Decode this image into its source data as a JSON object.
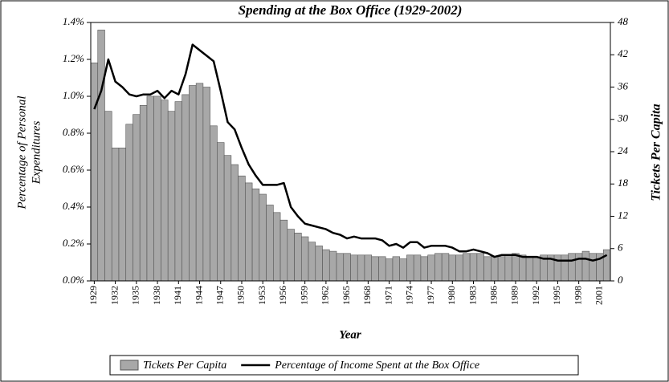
{
  "chart_data": {
    "type": "bar",
    "title": "Spending at the Box Office (1929-2002)",
    "ylabel": [
      "Percentage of Personal",
      "Expenditures"
    ],
    "y2label": "Tickets Per Capita",
    "xlabel": "Year",
    "categories": [
      "1929",
      null,
      null,
      "1932",
      null,
      null,
      "1935",
      null,
      null,
      "1938",
      null,
      null,
      "1941",
      null,
      null,
      "1944",
      null,
      null,
      "1947",
      null,
      null,
      "1950",
      null,
      null,
      "1953",
      null,
      null,
      "1956",
      null,
      null,
      "1959",
      null,
      null,
      "1962",
      null,
      null,
      "1965",
      null,
      null,
      "1968",
      null,
      null,
      "1971",
      null,
      null,
      "1974",
      null,
      null,
      "1977",
      null,
      null,
      "1980",
      null,
      null,
      "1983",
      null,
      null,
      "1986",
      null,
      null,
      "1989",
      null,
      null,
      "1992",
      null,
      null,
      "1995",
      null,
      null,
      "1998",
      null,
      null,
      "2001",
      null
    ],
    "ylim": [
      0,
      1.4
    ],
    "yticks": [
      {
        "value": 0,
        "label": "0.0%"
      },
      {
        "value": 0.2,
        "label": "0.2%"
      },
      {
        "value": 0.4,
        "label": "0.4%"
      },
      {
        "value": 0.6,
        "label": "0.6%"
      },
      {
        "value": 0.8,
        "label": "0.8%"
      },
      {
        "value": 1.0,
        "label": "1.0%"
      },
      {
        "value": 1.2,
        "label": "1.2%"
      },
      {
        "value": 1.4,
        "label": "1.4%"
      }
    ],
    "y2lim": [
      0,
      48
    ],
    "y2ticks": [
      0,
      6,
      12,
      18,
      24,
      30,
      36,
      42,
      48
    ],
    "legend": "bottom",
    "series": [
      {
        "name": "Tickets Per Capita",
        "type": "bar",
        "axis": "y2",
        "color": "#a8a8a8",
        "values": [
          40.5,
          46.6,
          31.5,
          24.7,
          24.7,
          29.1,
          30.9,
          32.6,
          34.3,
          34.3,
          33.6,
          31.5,
          33.3,
          34.6,
          36.3,
          36.7,
          36.0,
          28.8,
          25.7,
          23.3,
          21.6,
          19.5,
          18.2,
          17.1,
          16.1,
          14.1,
          12.7,
          11.3,
          9.6,
          8.9,
          8.2,
          7.2,
          6.5,
          5.8,
          5.5,
          5.1,
          5.1,
          4.8,
          4.8,
          4.8,
          4.5,
          4.5,
          4.1,
          4.5,
          4.1,
          4.8,
          4.8,
          4.5,
          4.8,
          5.1,
          5.1,
          4.8,
          4.8,
          5.1,
          5.1,
          5.1,
          4.5,
          4.5,
          4.5,
          4.8,
          5.1,
          4.8,
          4.5,
          4.5,
          4.8,
          4.8,
          4.8,
          4.8,
          5.1,
          5.1,
          5.5,
          5.1,
          5.1,
          5.8
        ]
      },
      {
        "name": "Percentage of Income Spent at the Box Office",
        "type": "line",
        "color": "#000000",
        "values": [
          0.93,
          1.03,
          1.2,
          1.08,
          1.05,
          1.01,
          1.0,
          1.01,
          1.01,
          1.03,
          0.99,
          1.03,
          1.01,
          1.12,
          1.28,
          1.25,
          1.22,
          1.19,
          1.03,
          0.86,
          0.82,
          0.72,
          0.63,
          0.57,
          0.52,
          0.52,
          0.52,
          0.53,
          0.4,
          0.35,
          0.31,
          0.3,
          0.29,
          0.28,
          0.26,
          0.25,
          0.23,
          0.24,
          0.23,
          0.23,
          0.23,
          0.22,
          0.19,
          0.2,
          0.18,
          0.21,
          0.21,
          0.18,
          0.19,
          0.19,
          0.19,
          0.18,
          0.16,
          0.16,
          0.17,
          0.16,
          0.15,
          0.13,
          0.14,
          0.14,
          0.14,
          0.13,
          0.13,
          0.13,
          0.12,
          0.12,
          0.11,
          0.11,
          0.11,
          0.12,
          0.12,
          0.11,
          0.12,
          0.14
        ]
      }
    ]
  }
}
